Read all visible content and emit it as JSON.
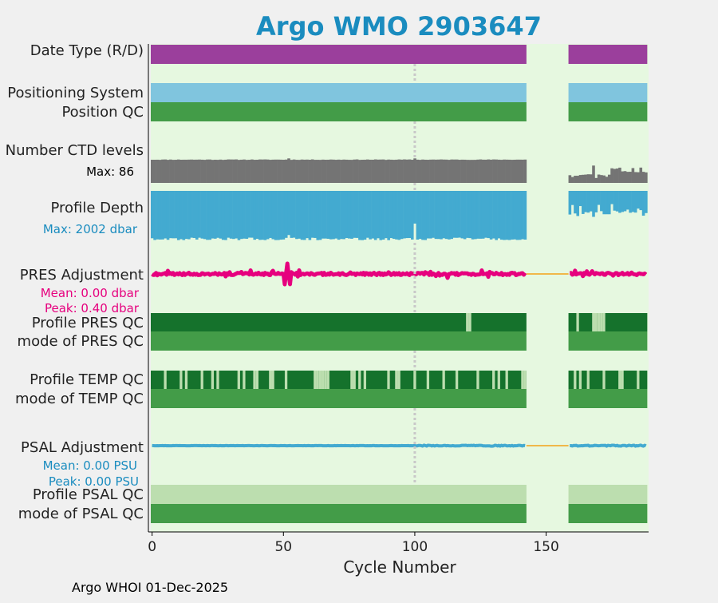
{
  "chart_data": {
    "type": "status-timeline",
    "title": "Argo WMO 2903647",
    "xlabel": "Cycle Number",
    "xlim": [
      -0.5,
      189
    ],
    "xticks": [
      0,
      50,
      100,
      150
    ],
    "footer": "Argo WHOI 01-Dec-2025",
    "data_gap": [
      142.5,
      158.5
    ],
    "segments": [
      [
        -0.5,
        142.5
      ],
      [
        158.5,
        188.5
      ]
    ],
    "reference_line_cycle": 100,
    "colors": {
      "title": "#1a8cbf",
      "plot_bg": "#e6f8e0",
      "page_bg": "#f0f0f0",
      "date_type": "#9b3f9c",
      "positioning": "#80c5de",
      "qc_good_mode": "#439c48",
      "ctd_levels": "#747474",
      "profile_depth": "#43aad0",
      "pres_adjust": "#e6007e",
      "qc_flag_dark": "#15722c",
      "qc_flag_light": "#bcdeaf",
      "psal_adjust": "#43aad0",
      "psal_adjust_label": "#1a8cbf",
      "gap_line": "#f0b84a",
      "ref_line": "#c8c8c8"
    },
    "rows": [
      {
        "label": "Date Type (R/D)",
        "kind": "bar",
        "color_key": "date_type"
      },
      {
        "label": "Positioning System",
        "kind": "bar",
        "color_key": "positioning"
      },
      {
        "label": "Position QC",
        "kind": "bar",
        "color_key": "qc_good_mode"
      },
      {
        "label": "Number CTD levels",
        "kind": "ctd",
        "annotation": "Max: 86",
        "max": 86
      },
      {
        "label": "Profile Depth",
        "kind": "depth",
        "annotation": "Max: 2002 dbar",
        "max": 2002
      },
      {
        "label": "PRES Adjustment",
        "kind": "pres_adj",
        "mean": "Mean: 0.00 dbar",
        "peak": "Peak: 0.40 dbar"
      },
      {
        "label": "Profile PRES QC",
        "kind": "flags",
        "light_cycles": [
          120,
          121,
          162,
          168,
          169,
          170,
          171,
          172
        ]
      },
      {
        "label": "mode of PRES QC",
        "kind": "bar",
        "color_key": "qc_good_mode"
      },
      {
        "label": "Profile TEMP QC",
        "kind": "flags",
        "light_cycles": [
          5,
          11,
          13,
          19,
          23,
          25,
          33,
          35,
          39,
          40,
          45,
          46,
          51,
          62,
          63,
          64,
          65,
          66,
          67,
          76,
          77,
          79,
          81,
          90,
          93,
          94,
          100,
          105,
          111,
          116,
          124,
          130,
          132,
          135,
          141,
          142,
          161,
          163,
          166,
          172,
          178,
          179,
          185
        ]
      },
      {
        "label": "mode of TEMP QC",
        "kind": "bar",
        "color_key": "qc_good_mode"
      },
      {
        "label": "PSAL Adjustment",
        "kind": "psal_adj",
        "mean": "Mean: 0.00 PSU",
        "peak": "Peak: 0.00 PSU"
      },
      {
        "label": "Profile PSAL QC",
        "kind": "bar",
        "color_key": "qc_flag_light"
      },
      {
        "label": "mode of PSAL QC",
        "kind": "bar",
        "color_key": "qc_good_mode"
      }
    ]
  }
}
